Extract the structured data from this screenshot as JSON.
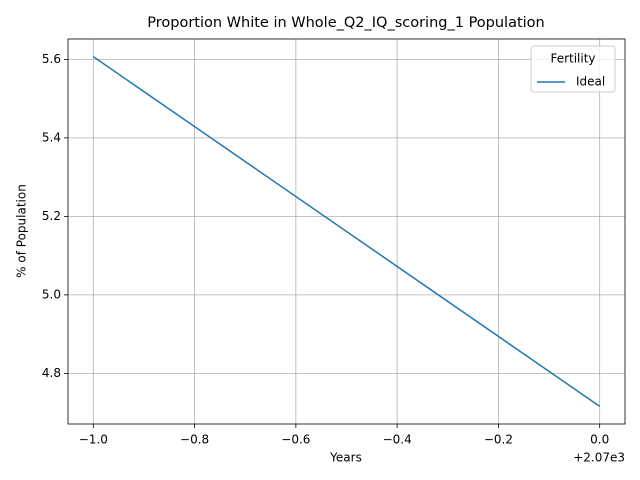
{
  "chart_data": {
    "type": "line",
    "title": "Proportion White in Whole_Q2_IQ_scoring_1 Population",
    "x_label": "Years",
    "y_label": "% of Population",
    "x_offset_label": "+2.07e3",
    "x": [
      2069,
      2070
    ],
    "series": [
      {
        "name": "Ideal",
        "color": "#1f77b4",
        "values": [
          5.607,
          4.716
        ]
      }
    ],
    "legend_title": "Fertility",
    "legend_position": "upper right",
    "xlim": [
      2068.95,
      2070.05
    ],
    "xticks": [
      {
        "value": 2069,
        "label": "−1.0"
      },
      {
        "value": 2069.2,
        "label": "−0.8"
      },
      {
        "value": 2069.4,
        "label": "−0.6"
      },
      {
        "value": 2069.6,
        "label": "−0.4"
      },
      {
        "value": 2069.8,
        "label": "−0.2"
      },
      {
        "value": 2070,
        "label": "0.0"
      }
    ],
    "ylim": [
      4.671,
      5.652
    ],
    "yticks": [
      4.8,
      {
        "value": 5,
        "label": "5.0"
      },
      5.2,
      5.4,
      5.6
    ],
    "grid": true
  }
}
